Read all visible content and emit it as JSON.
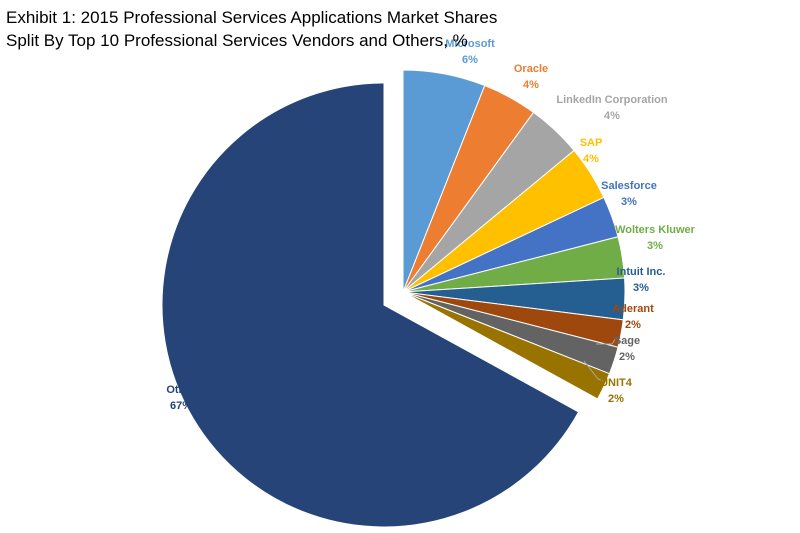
{
  "chart_data": {
    "type": "pie",
    "title_lines": [
      "Exhibit 1: 2015 Professional Services Applications Market Shares",
      "Split By Top 10 Professional Services Vendors and Others, %"
    ],
    "slices": [
      {
        "name": "Microsoft",
        "value": 6,
        "label": "6%",
        "color": "#5b9bd5"
      },
      {
        "name": "Oracle",
        "value": 4,
        "label": "4%",
        "color": "#ed7d31"
      },
      {
        "name": "LinkedIn Corporation",
        "value": 4,
        "label": "4%",
        "color": "#a5a5a5"
      },
      {
        "name": "SAP",
        "value": 4,
        "label": "4%",
        "color": "#ffc000"
      },
      {
        "name": "Salesforce",
        "value": 3,
        "label": "3%",
        "color": "#4472c4"
      },
      {
        "name": "Wolters Kluwer",
        "value": 3,
        "label": "3%",
        "color": "#70ad47"
      },
      {
        "name": "Intuit Inc.",
        "value": 3,
        "label": "3%",
        "color": "#255e91"
      },
      {
        "name": "Aderant",
        "value": 2,
        "label": "2%",
        "color": "#9e480e"
      },
      {
        "name": "Sage",
        "value": 2,
        "label": "2%",
        "color": "#636363"
      },
      {
        "name": "UNIT4",
        "value": 2,
        "label": "2%",
        "color": "#997300"
      },
      {
        "name": "Other",
        "value": 67,
        "label": "67%",
        "color": "#264478"
      }
    ]
  }
}
